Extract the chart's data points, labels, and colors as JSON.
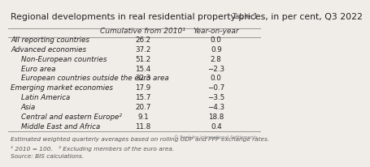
{
  "title": "Regional developments in real residential property prices, in per cent, Q3 2022",
  "table_label": "Table 1",
  "col_headers": [
    "Cumulative from 2010¹",
    "Year-on-year"
  ],
  "rows": [
    {
      "label": "All reporting countries",
      "indent": false,
      "values": [
        "26.2",
        "0.0"
      ]
    },
    {
      "label": "Advanced economies",
      "indent": false,
      "values": [
        "37.2",
        "0.9"
      ]
    },
    {
      "label": "Non-European countries",
      "indent": true,
      "values": [
        "51.2",
        "2.8"
      ]
    },
    {
      "label": "Euro area",
      "indent": true,
      "values": [
        "15.4",
        "−2.3"
      ]
    },
    {
      "label": "European countries outside the euro area",
      "indent": true,
      "values": [
        "32.3",
        "0.0"
      ]
    },
    {
      "label": "Emerging market economies",
      "indent": false,
      "values": [
        "17.9",
        "−0.7"
      ]
    },
    {
      "label": "Latin America",
      "indent": true,
      "values": [
        "15.7",
        "−3.5"
      ]
    },
    {
      "label": "Asia",
      "indent": true,
      "values": [
        "20.7",
        "−4.3"
      ]
    },
    {
      "label": "Central and eastern Europe²",
      "indent": true,
      "values": [
        "9.1",
        "18.8"
      ]
    },
    {
      "label": "Middle East and Africa",
      "indent": true,
      "values": [
        "11.8",
        "0.4"
      ]
    }
  ],
  "footnote1": "Estimated weighted quarterly averages based on rolling GDP and PPP exchange rates.",
  "footnote2": "¹ 2010 = 100.   ² Excluding members of the euro area.",
  "footnote3": "Source: BIS calculations.",
  "footnote4": "© Bank for International Settlements",
  "bg_color": "#f0ede8",
  "title_fontsize": 7.8,
  "header_fontsize": 6.5,
  "row_fontsize": 6.3,
  "footnote_fontsize": 5.3
}
